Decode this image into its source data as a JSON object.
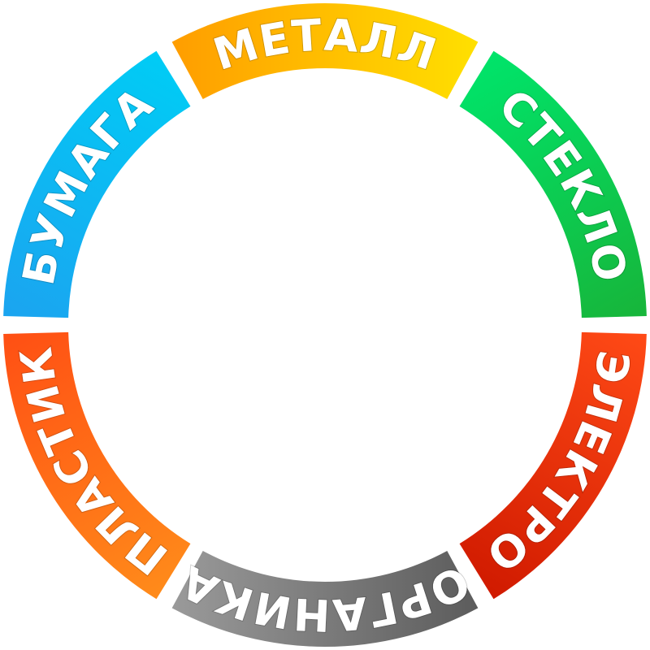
{
  "segments": [
    {
      "id": "metal",
      "label": "МЕТАЛЛ",
      "color_start": "#ff9d00",
      "color_end": "#ffe000"
    },
    {
      "id": "glass",
      "label": "СТЕКЛО",
      "color_start": "#00e46a",
      "color_end": "#17b53a"
    },
    {
      "id": "electro",
      "label": "ЭЛЕКТРО",
      "color_start": "#ff4a16",
      "color_end": "#d01a00"
    },
    {
      "id": "organic",
      "label": "ОРГАНИКА",
      "color_start": "#5c5c5c",
      "color_end": "#9a9a9a"
    },
    {
      "id": "plastic",
      "label": "ПЛАСТИК",
      "color_start": "#ff8b1a",
      "color_end": "#ff4f14"
    },
    {
      "id": "paper",
      "label": "БУМАГА",
      "color_start": "#1ba4f0",
      "color_end": "#00ccf5"
    }
  ]
}
